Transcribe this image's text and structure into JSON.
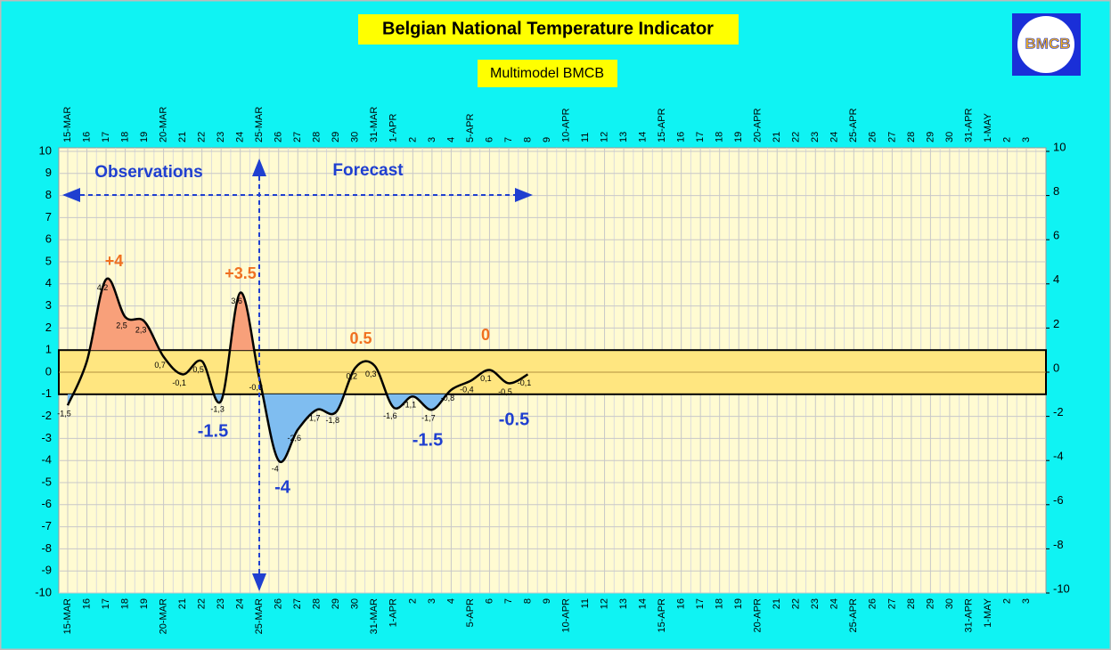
{
  "chart_data": {
    "type": "line",
    "title": "Belgian National Temperature Indicator",
    "subtitle": "Multimodel BMCB",
    "logo_text": "BMCB",
    "categories": [
      "15-MAR",
      "16",
      "17",
      "18",
      "19",
      "20-MAR",
      "21",
      "22",
      "23",
      "24",
      "25-MAR",
      "26",
      "27",
      "28",
      "29",
      "30",
      "31-MAR",
      "1-APR",
      "2",
      "3",
      "4",
      "5-APR",
      "6",
      "7",
      "8",
      "9",
      "10-APR",
      "11",
      "12",
      "13",
      "14",
      "15-APR",
      "16",
      "17",
      "18",
      "19",
      "20-APR",
      "21",
      "22",
      "23",
      "24",
      "25-APR",
      "26",
      "27",
      "28",
      "29",
      "30",
      "31-APR",
      "1-MAY",
      "2",
      "3"
    ],
    "values": [
      -1.5,
      0.5,
      4.2,
      2.5,
      2.3,
      0.7,
      -0.1,
      0.5,
      -1.3,
      3.6,
      -0.3,
      -4,
      -2.6,
      -1.7,
      -1.8,
      0.2,
      0.3,
      -1.6,
      -1.1,
      -1.7,
      -0.8,
      -0.4,
      0.1,
      -0.5,
      -0.1,
      null,
      null,
      null,
      null,
      null,
      null,
      null,
      null,
      null,
      null,
      null,
      null,
      null,
      null,
      null,
      null,
      null,
      null,
      null,
      null,
      null,
      null,
      null,
      null,
      null,
      null
    ],
    "value_labels": [
      "-1,5",
      null,
      "4,2",
      "2,5",
      "2,3",
      "0,7",
      "-0,1",
      "0,5",
      "-1,3",
      "3,6",
      "-0,3",
      "-4",
      "-2,6",
      "-1,7",
      "-1,8",
      "0,2",
      "0,3",
      "-1,6",
      "-1,1",
      "-1,7",
      "-0,8",
      "-0,4",
      "0,1",
      "-0,5",
      "-0,1",
      null,
      null,
      null,
      null,
      null,
      null,
      null,
      null,
      null,
      null,
      null,
      null,
      null,
      null,
      null,
      null,
      null,
      null,
      null,
      null,
      null,
      null,
      null,
      null,
      null,
      null
    ],
    "color": "#000000",
    "above_color": "#f8a07a",
    "below_color": "#7fbdf0",
    "normal_band": [
      -1,
      1
    ],
    "band_color": "#ffe680",
    "ylim": [
      -10,
      10
    ],
    "yticks": [
      10,
      9,
      8,
      7,
      6,
      5,
      4,
      3,
      2,
      1,
      0,
      -1,
      -2,
      -3,
      -4,
      -5,
      -6,
      -7,
      -8,
      -9,
      -10
    ],
    "y2lim": [
      -10,
      10
    ],
    "y2ticks": [
      10,
      8,
      6,
      4,
      2,
      0,
      -2,
      -4,
      -6,
      -8,
      -10
    ],
    "grid": true,
    "annotations": [
      {
        "text": "+4",
        "color": "#f07020"
      },
      {
        "text": "+3.5",
        "color": "#f07020"
      },
      {
        "text": "0.5",
        "color": "#f07020"
      },
      {
        "text": "0",
        "color": "#f07020"
      },
      {
        "text": "-1.5",
        "color": "#1f3fd0"
      },
      {
        "text": "-4",
        "color": "#1f3fd0"
      },
      {
        "text": "-1.5",
        "color": "#1f3fd0"
      },
      {
        "text": "-0.5",
        "color": "#1f3fd0"
      },
      {
        "text": "Observations",
        "color": "#1f3fd0"
      },
      {
        "text": "Forecast",
        "color": "#1f3fd0"
      }
    ]
  }
}
